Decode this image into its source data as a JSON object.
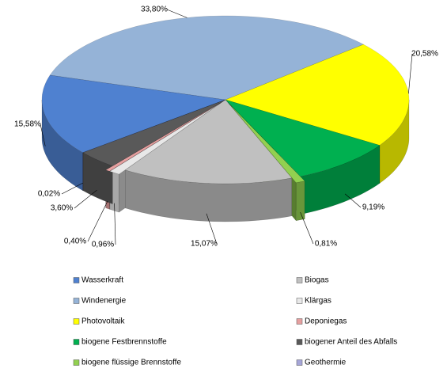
{
  "chart_data": {
    "type": "pie",
    "categories": [
      "Wasserkraft",
      "Windenergie",
      "Photovoltaik",
      "biogene Festbrennstoffe",
      "biogene flüssige Brennstoffe",
      "Biogas",
      "Klärgas",
      "Deponiegas",
      "biogener Anteil des Abfalls",
      "Geothermie"
    ],
    "values": [
      15.58,
      33.8,
      20.58,
      9.19,
      0.81,
      15.07,
      0.96,
      0.4,
      3.6,
      0.02
    ],
    "value_labels": [
      "15,58%",
      "33,80%",
      "20,58%",
      "9,19%",
      "0,81%",
      "15,07%",
      "0,96%",
      "0,40%",
      "3,60%",
      "0,02%"
    ],
    "colors": [
      "#4f81d0",
      "#95b3d7",
      "#ffff00",
      "#00b050",
      "#92d050",
      "#c0c0c0",
      "#e8e8e8",
      "#e6a0a0",
      "#595959",
      "#a6a6d8"
    ],
    "exploded": [
      4,
      6,
      7
    ],
    "legend": "bottom"
  }
}
